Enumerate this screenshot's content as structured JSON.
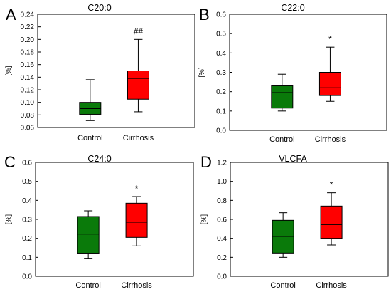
{
  "figure": {
    "panels": [
      {
        "letter": "A",
        "title": "C20:0",
        "ylabel": "[%]",
        "annotation": "##",
        "ylim": [
          0.06,
          0.24
        ],
        "yticks": [
          "0.06",
          "0.08",
          "0.10",
          "0.12",
          "0.14",
          "0.16",
          "0.18",
          "0.20",
          "0.22",
          "0.24"
        ]
      },
      {
        "letter": "B",
        "title": "C22:0",
        "ylabel": "[%]",
        "annotation": "*",
        "ylim": [
          0.0,
          0.6
        ],
        "yticks": [
          "0.0",
          "0.1",
          "0.2",
          "0.3",
          "0.4",
          "0.5",
          "0.6"
        ]
      },
      {
        "letter": "C",
        "title": "C24:0",
        "ylabel": "[%]",
        "annotation": "*",
        "ylim": [
          0.0,
          0.6
        ],
        "yticks": [
          "0.0",
          "0.1",
          "0.2",
          "0.3",
          "0.4",
          "0.5",
          "0.6"
        ]
      },
      {
        "letter": "D",
        "title": "VLCFA",
        "ylabel": "[%]",
        "annotation": "*",
        "ylim": [
          0.0,
          1.2
        ],
        "yticks": [
          "0.0",
          "0.2",
          "0.4",
          "0.6",
          "0.8",
          "1.0",
          "1.2"
        ]
      }
    ]
  },
  "chart_data": [
    {
      "type": "box",
      "title": "C20:0",
      "ylabel": "[%]",
      "ylim": [
        0.06,
        0.24
      ],
      "categories": [
        "Control",
        "Cirrhosis"
      ],
      "colors": [
        "#0a7a0a",
        "#ff0000"
      ],
      "boxes": [
        {
          "category": "Control",
          "whisker_low": 0.071,
          "q1": 0.081,
          "median": 0.09,
          "q3": 0.1,
          "whisker_high": 0.136
        },
        {
          "category": "Cirrhosis",
          "whisker_low": 0.085,
          "q1": 0.105,
          "median": 0.138,
          "q3": 0.15,
          "whisker_high": 0.2
        }
      ]
    },
    {
      "type": "box",
      "title": "C22:0",
      "ylabel": "[%]",
      "ylim": [
        0.0,
        0.6
      ],
      "categories": [
        "Control",
        "Cirrhosis"
      ],
      "colors": [
        "#0a7a0a",
        "#ff0000"
      ],
      "boxes": [
        {
          "category": "Control",
          "whisker_low": 0.1,
          "q1": 0.115,
          "median": 0.195,
          "q3": 0.23,
          "whisker_high": 0.29
        },
        {
          "category": "Cirrhosis",
          "whisker_low": 0.15,
          "q1": 0.18,
          "median": 0.22,
          "q3": 0.3,
          "whisker_high": 0.43
        }
      ]
    },
    {
      "type": "box",
      "title": "C24:0",
      "ylabel": "[%]",
      "ylim": [
        0.0,
        0.6
      ],
      "categories": [
        "Control",
        "Cirrhosis"
      ],
      "colors": [
        "#0a7a0a",
        "#ff0000"
      ],
      "boxes": [
        {
          "category": "Control",
          "whisker_low": 0.095,
          "q1": 0.122,
          "median": 0.222,
          "q3": 0.315,
          "whisker_high": 0.345
        },
        {
          "category": "Cirrhosis",
          "whisker_low": 0.16,
          "q1": 0.205,
          "median": 0.285,
          "q3": 0.385,
          "whisker_high": 0.42
        }
      ]
    },
    {
      "type": "box",
      "title": "VLCFA",
      "ylabel": "[%]",
      "ylim": [
        0.0,
        1.2
      ],
      "categories": [
        "Control",
        "Cirrhosis"
      ],
      "colors": [
        "#0a7a0a",
        "#ff0000"
      ],
      "boxes": [
        {
          "category": "Control",
          "whisker_low": 0.2,
          "q1": 0.245,
          "median": 0.42,
          "q3": 0.59,
          "whisker_high": 0.67
        },
        {
          "category": "Cirrhosis",
          "whisker_low": 0.33,
          "q1": 0.4,
          "median": 0.545,
          "q3": 0.74,
          "whisker_high": 0.88
        }
      ]
    }
  ]
}
